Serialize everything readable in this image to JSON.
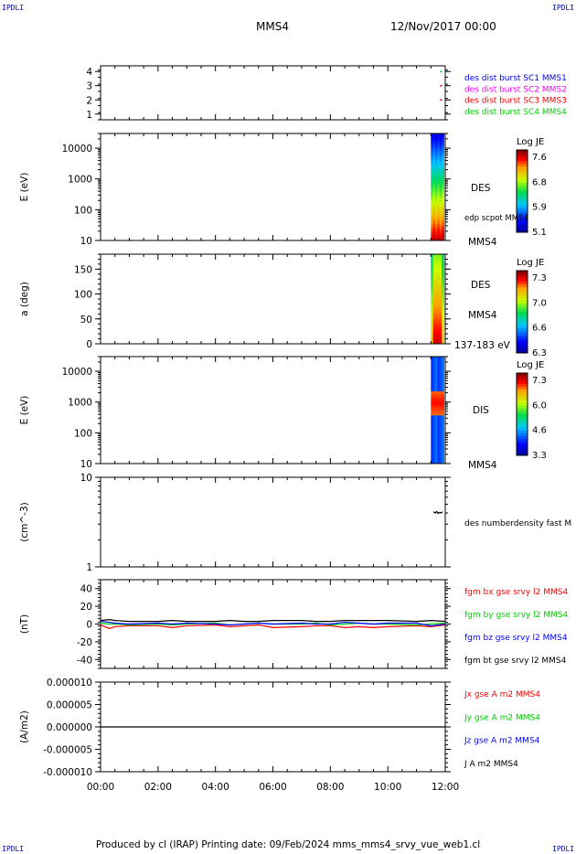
{
  "corners": {
    "tl": "IPDLI",
    "tr": "IPDLI",
    "bl": "IPDLI",
    "br": "IPDLI"
  },
  "header": {
    "spacecraft": "MMS4",
    "date": "12/Nov/2017 00:00"
  },
  "footer": "Produced by cl (IRAP)   Printing date: 09/Feb/2024   mms_mms4_srvy_vue_web1.cl",
  "colors": {
    "blue": "#0000ff",
    "magenta": "#ff00ff",
    "red": "#ff0000",
    "green": "#00cc00",
    "black": "#000000"
  },
  "chart_data": [
    {
      "type": "scatter",
      "panel": "burst-flags",
      "ylim": [
        0.6,
        4.4
      ],
      "yticks": [
        "1",
        "2",
        "3",
        "4"
      ],
      "legend": [
        {
          "label": "des dist burst SC1 MMS1",
          "color": "#0000ff"
        },
        {
          "label": "des dist burst SC2 MMS2",
          "color": "#ff00ff"
        },
        {
          "label": "des dist burst SC3 MMS3",
          "color": "#ff0000"
        },
        {
          "label": "des dist burst SC4 MMS4",
          "color": "#00cc00"
        }
      ],
      "points": [
        {
          "x": 11.85,
          "y": 4,
          "color": "#00cc00"
        },
        {
          "x": 11.85,
          "y": 3,
          "color": "#ff0000"
        },
        {
          "x": 11.85,
          "y": 2,
          "color": "#ff0000"
        }
      ]
    },
    {
      "type": "heatmap",
      "panel": "des-energy",
      "ylabel": "E (eV)",
      "yscale": "log",
      "ylim": [
        10,
        30000
      ],
      "yticks": [
        "10",
        "100",
        "1000",
        "10000"
      ],
      "labels": [
        "DES",
        "edp scpot MMS4",
        "MMS4"
      ],
      "colorbar": {
        "title": "Log JE",
        "ticks": [
          "7.6",
          "6.8",
          "5.9",
          "5.1"
        ]
      },
      "xrange": [
        11.5,
        11.95
      ]
    },
    {
      "type": "heatmap",
      "panel": "des-pitch",
      "ylabel": "a (deg)",
      "ylim": [
        0,
        180
      ],
      "yticks": [
        "0",
        "50",
        "100",
        "150"
      ],
      "labels": [
        "DES",
        "MMS4",
        "137-183 eV"
      ],
      "colorbar": {
        "title": "Log JE",
        "ticks": [
          "7.3",
          "7.0",
          "6.6",
          "6.3"
        ]
      },
      "xrange": [
        11.5,
        11.95
      ]
    },
    {
      "type": "heatmap",
      "panel": "dis-energy",
      "ylabel": "E (eV)",
      "yscale": "log",
      "ylim": [
        10,
        30000
      ],
      "yticks": [
        "10",
        "100",
        "1000",
        "10000"
      ],
      "labels": [
        "DIS",
        "MMS4"
      ],
      "colorbar": {
        "title": "Log JE",
        "ticks": [
          "7.3",
          "6.0",
          "4.6",
          "3.3"
        ]
      },
      "xrange": [
        11.5,
        11.95
      ]
    },
    {
      "type": "line",
      "panel": "density",
      "ylabel": "(cm^-3)",
      "yscale": "log",
      "ylim": [
        1,
        10
      ],
      "yticks": [
        "1",
        "10"
      ],
      "legend": [
        {
          "label": "des numberdensity fast M",
          "color": "#000000"
        }
      ],
      "series": [
        {
          "x": [
            11.6,
            11.65,
            11.7,
            11.75,
            11.8,
            11.85,
            11.9
          ],
          "y": [
            4.1,
            4.0,
            4.15,
            3.95,
            4.05,
            4.0,
            4.1
          ]
        }
      ]
    },
    {
      "type": "line",
      "panel": "magnetic-field",
      "ylabel": "(nT)",
      "ylim": [
        -50,
        50
      ],
      "yticks": [
        "-40",
        "-20",
        "0",
        "20",
        "40"
      ],
      "legend": [
        {
          "label": "fgm bx gse srvy l2 MMS4",
          "color": "#ff0000"
        },
        {
          "label": "fgm by gse srvy l2 MMS4",
          "color": "#00cc00"
        },
        {
          "label": "fgm bz gse srvy l2 MMS4",
          "color": "#0000ff"
        },
        {
          "label": "fgm bt gse srvy l2 MMS4",
          "color": "#000000"
        }
      ],
      "x": [
        0,
        0.3,
        0.5,
        1,
        2,
        2.5,
        3,
        4,
        4.5,
        5,
        5.5,
        6,
        7,
        7.5,
        8,
        8.5,
        9,
        9.5,
        10,
        11,
        11.5,
        12
      ],
      "series": [
        {
          "y": [
            -1,
            -5,
            -3,
            -2,
            -2,
            -4,
            -2,
            -1,
            -3,
            -2,
            -1,
            -4,
            -3,
            -2,
            -2,
            -4,
            -3,
            -4,
            -3,
            -2,
            -3,
            -1
          ],
          "color": "#ff0000"
        },
        {
          "y": [
            1,
            0,
            0,
            -1,
            0,
            -1,
            0,
            1,
            -1,
            0,
            1,
            0,
            0,
            1,
            -1,
            0,
            1,
            0,
            0,
            -1,
            0,
            1
          ],
          "color": "#00cc00"
        },
        {
          "y": [
            3,
            2,
            1,
            0,
            1,
            0,
            1,
            0,
            -1,
            0,
            1,
            0,
            1,
            0,
            0,
            2,
            1,
            0,
            1,
            1,
            -2,
            0
          ],
          "color": "#0000ff"
        },
        {
          "y": [
            4,
            5,
            4,
            3,
            3,
            4,
            3,
            3,
            4,
            3,
            3,
            4,
            4,
            3,
            3,
            4,
            4,
            4,
            4,
            3,
            4,
            3
          ],
          "color": "#000000"
        }
      ]
    },
    {
      "type": "line",
      "panel": "current-density",
      "ylabel": "(A/m2)",
      "ylim": [
        -1e-05,
        1e-05
      ],
      "yticks": [
        "-0.000010",
        "-0.000005",
        "0.000000",
        "0.000005",
        "0.000010"
      ],
      "legend": [
        {
          "label": "Jx gse A m2 MMS4",
          "color": "#ff0000"
        },
        {
          "label": "Jy gse A m2 MMS4",
          "color": "#00cc00"
        },
        {
          "label": "Jz gse A m2 MMS4",
          "color": "#0000ff"
        },
        {
          "label": "J A m2 MMS4",
          "color": "#000000"
        }
      ],
      "series": [
        {
          "x": [
            0,
            12
          ],
          "y": [
            0,
            0
          ],
          "color": "#000000"
        }
      ]
    }
  ],
  "xaxis": {
    "range": [
      0,
      12
    ],
    "ticks": [
      "00:00",
      "02:00",
      "04:00",
      "06:00",
      "08:00",
      "10:00",
      "12:00"
    ]
  }
}
